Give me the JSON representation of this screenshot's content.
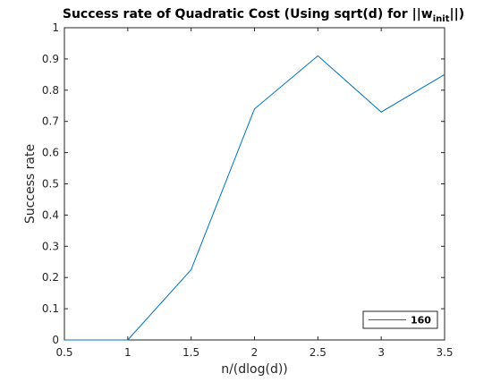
{
  "chart_data": {
    "type": "line",
    "title": "Success rate of Quadratic Cost (Using sqrt(d) for ||w",
    "title_subscript": "init",
    "title_suffix": "||)",
    "xlabel": "n/(dlog(d))",
    "ylabel": "Success rate",
    "xlim": [
      0.5,
      3.5
    ],
    "ylim": [
      0,
      1
    ],
    "xticks": [
      0.5,
      1,
      1.5,
      2,
      2.5,
      3,
      3.5
    ],
    "xtick_labels": [
      "0.5",
      "1",
      "1.5",
      "2",
      "2.5",
      "3",
      "3.5"
    ],
    "yticks": [
      0,
      0.1,
      0.2,
      0.3,
      0.4,
      0.5,
      0.6,
      0.7,
      0.8,
      0.9,
      1
    ],
    "ytick_labels": [
      "0",
      "0.1",
      "0.2",
      "0.3",
      "0.4",
      "0.5",
      "0.6",
      "0.7",
      "0.8",
      "0.9",
      "1"
    ],
    "grid": false,
    "legend_location": "bottom-right",
    "series": [
      {
        "name": "160",
        "color": "#0072BD",
        "x": [
          0.5,
          1,
          1.5,
          2,
          2.5,
          3,
          3.5
        ],
        "y": [
          0,
          0,
          0.225,
          0.74,
          0.91,
          0.73,
          0.85
        ]
      }
    ]
  }
}
